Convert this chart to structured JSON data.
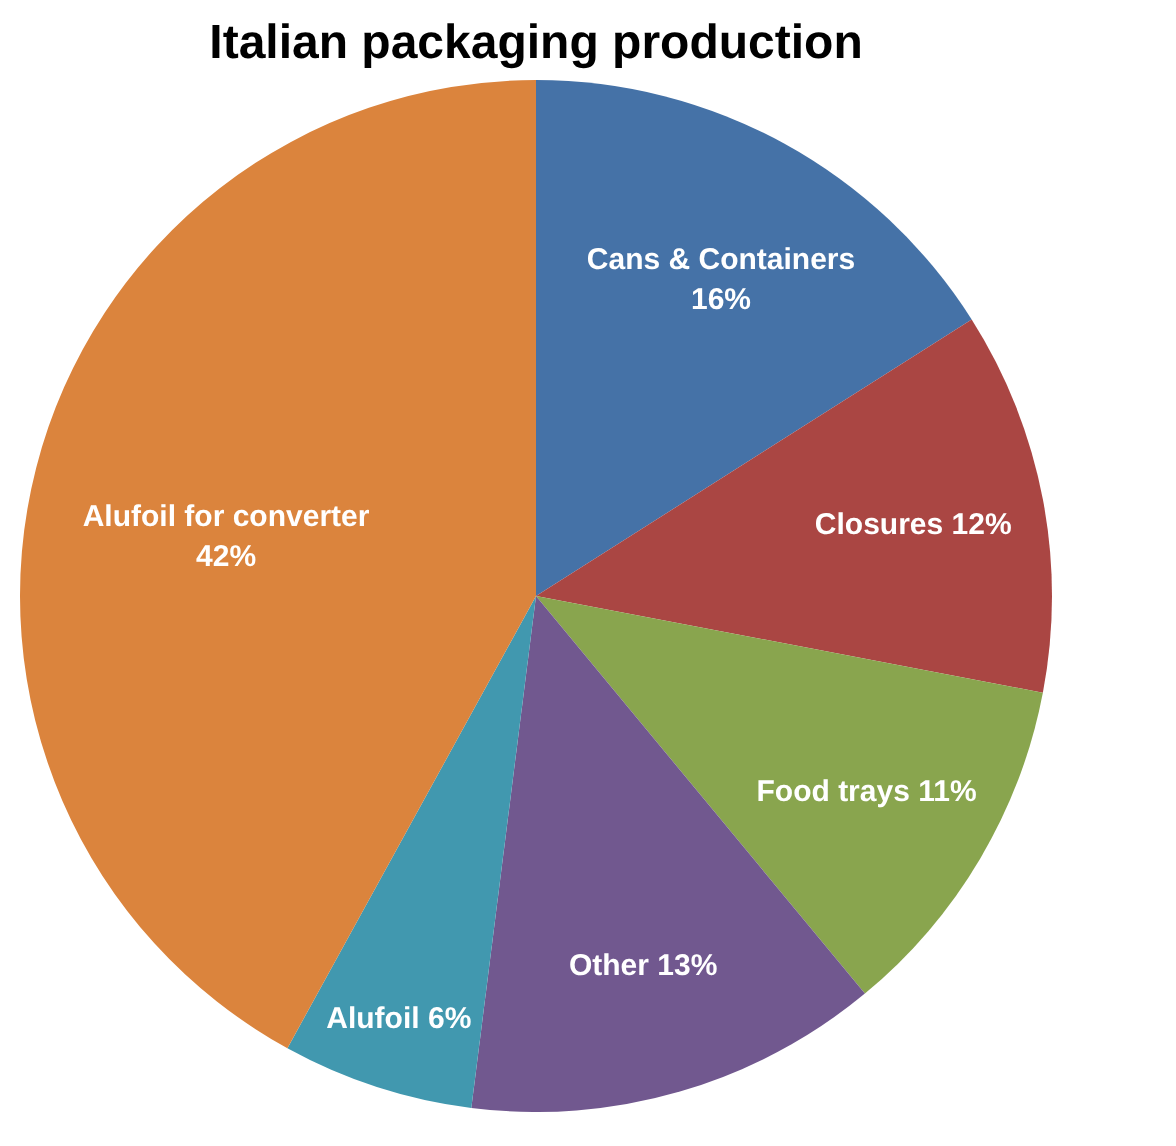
{
  "chart_data": {
    "type": "pie",
    "title": "Italian packaging production",
    "categories": [
      "Cans & Containers",
      "Closures",
      "Food trays",
      "Other",
      "Alufoil",
      "Alufoil for converter"
    ],
    "values": [
      16,
      12,
      11,
      13,
      6,
      42
    ],
    "colors": [
      "#4572a7",
      "#aa4643",
      "#89a54e",
      "#71588f",
      "#4198af",
      "#db843d"
    ],
    "value_labels": [
      "16%",
      "12%",
      "11%",
      "13%",
      "6%",
      "42%"
    ],
    "data_labels": true,
    "legend": false
  }
}
